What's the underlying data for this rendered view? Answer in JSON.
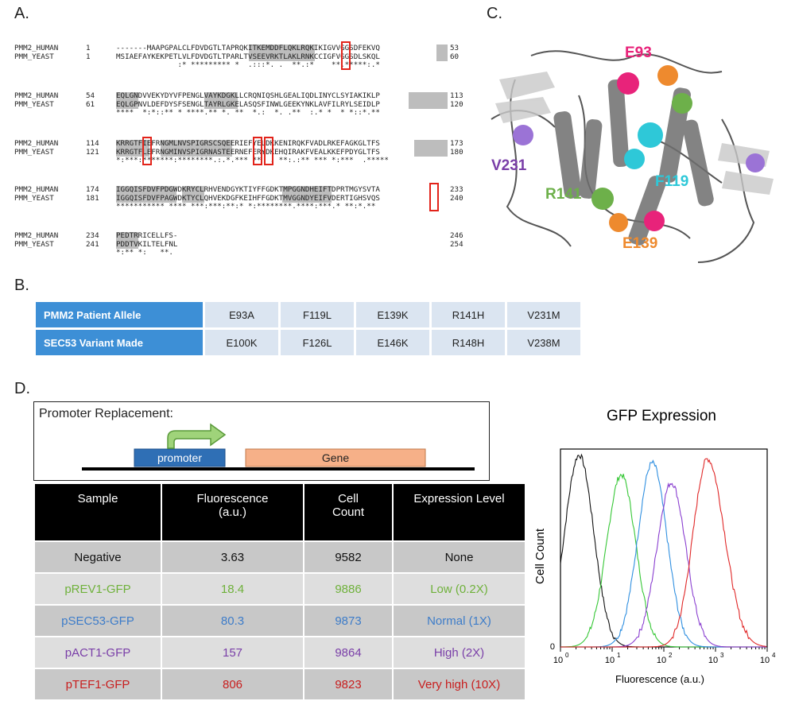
{
  "panels": {
    "a": "A.",
    "b": "B.",
    "c": "C.",
    "d": "D."
  },
  "alignment": {
    "blocks": [
      {
        "h_name": "PMM2_HUMAN",
        "h_start": "1",
        "h_seq": "-------MAAPGPALCLFDVDGTLTAPRQKITKEMDDFLQKLRQKIKIGVVGGSDFEKVQ",
        "h_end": "53",
        "y_name": "PMM_YEAST",
        "y_start": "1",
        "y_seq": "MSIAEFAYKEKPETLVLFDVDGTLTPARLTVSEEVRKTLAKLRNKCCIGFVGGSDLSKQL",
        "y_end": "60",
        "cons": "              :* ********* *  .:::*. .  **.:*    **.*****:.*  "
      },
      {
        "h_name": "PMM2_HUMAN",
        "h_start": "54",
        "h_seq": "EQLGNDVVEKYDYVFPENGLVAYKDGKLLCRQNIQSHLGEALIQDLINYCLSYIAKIKLP",
        "h_end": "113",
        "y_name": "PMM_YEAST",
        "y_start": "61",
        "y_seq": "EQLGPNVLDEFDYSFSENGLTAYRLGKELASQSFINWLGEEKYNKLAVFILRYLSEIDLP",
        "h_end_y": "120",
        "cons": "****  *:*::** * ****.** *. **  *.:  *. .**  :.* *  * *::*.**"
      },
      {
        "h_name": "PMM2_HUMAN",
        "h_start": "114",
        "h_seq": "KRRGTFIEFRNGMLNVSPIGRSCSQEERIEFYELDKKENIRQKFVADLRKEFAGKGLTFS",
        "h_end": "173",
        "y_name": "PMM_YEAST",
        "y_start": "121",
        "y_seq": "KRRGTFLEFRNGMINVSPIGRNASTEERNEFERYDKEHQIRAKFVEALKKEFPDYGLTFS",
        "h_end_y": "180",
        "cons": "*:***:*******:********.:.*.*** **  . **:.:** *** *:***  .*****"
      },
      {
        "h_name": "PMM2_HUMAN",
        "h_start": "174",
        "h_seq": "IGGQISFDVFPDGWDKRYCLRHVENDGYKTIYFFGDKTMPGGNDHEIFTDPRTMGYSVTA",
        "h_end": "233",
        "y_name": "PMM_YEAST",
        "y_start": "181",
        "y_seq": "IGGQISFDVFPAGWDKTYCLQHVEKDGFKEIHFFGDKTMVGGNDYEIFVDERTIGHSVQS",
        "h_end_y": "240",
        "cons": "*********** **** ***:***:**:* *:********.****:***.* **:*.**  "
      },
      {
        "h_name": "PMM2_HUMAN",
        "h_start": "234",
        "h_seq": "PEDTRRICELLFS-",
        "h_end": "246",
        "y_name": "PMM_YEAST",
        "y_start": "241",
        "y_seq": "PDDTVKILTELFNL",
        "h_end_y": "254",
        "cons": "*:** *:   **.  "
      }
    ]
  },
  "table_b": {
    "row1_label": "PMM2 Patient Allele",
    "row1": [
      "E93A",
      "F119L",
      "E139K",
      "R141H",
      "V231M"
    ],
    "row2_label": "SEC53 Variant Made",
    "row2": [
      "E100K",
      "F126L",
      "E146K",
      "R148H",
      "V238M"
    ]
  },
  "structure_labels": {
    "e93": "E93",
    "v231": "V231",
    "r141": "R141",
    "f119": "F119",
    "e139": "E139",
    "colors": {
      "e93": "#e8237a",
      "v231": "#7a3fa8",
      "r141": "#6db04a",
      "f119": "#2ec8d8",
      "e139": "#ee8a2e"
    }
  },
  "promoter": {
    "title": "Promoter Replacement:",
    "promoter": "promoter",
    "gene": "Gene"
  },
  "table_d": {
    "headers": [
      "Sample",
      "Fluorescence\n(a.u.)",
      "Cell\nCount",
      "Expression Level"
    ],
    "rows": [
      {
        "sample": "Negative",
        "fluor": "3.63",
        "count": "9582",
        "level": "None",
        "color": "#111111"
      },
      {
        "sample": "pREV1-GFP",
        "fluor": "18.4",
        "count": "9886",
        "level": "Low (0.2X)",
        "color": "#6fb13b"
      },
      {
        "sample": "pSEC53-GFP",
        "fluor": "80.3",
        "count": "9873",
        "level": "Normal (1X)",
        "color": "#3d7cc9"
      },
      {
        "sample": "pACT1-GFP",
        "fluor": "157",
        "count": "9864",
        "level": "High (2X)",
        "color": "#7a3fa8"
      },
      {
        "sample": "pTEF1-GFP",
        "fluor": "806",
        "count": "9823",
        "level": "Very high (10X)",
        "color": "#c81e1e"
      }
    ]
  },
  "chart_data": {
    "type": "line",
    "title": "GFP Expression",
    "xlabel": "Fluorescence (a.u.)",
    "ylabel": "Cell Count",
    "xscale": "log",
    "xlim": [
      1,
      10000
    ],
    "xticks": [
      "10",
      "10",
      "10",
      "10",
      "10"
    ],
    "xtick_exponents": [
      "0",
      "1",
      "2",
      "3",
      "4"
    ],
    "ytick": "0",
    "series": [
      {
        "color": "#111111",
        "peak_x": 2.3,
        "peak_rel": 0.97
      },
      {
        "color": "#36c736",
        "peak_x": 15,
        "peak_rel": 0.87
      },
      {
        "color": "#2f8fe0",
        "peak_x": 60,
        "peak_rel": 0.93
      },
      {
        "color": "#8a3fd0",
        "peak_x": 140,
        "peak_rel": 0.83
      },
      {
        "color": "#e02828",
        "peak_x": 700,
        "peak_rel": 0.95
      }
    ]
  }
}
